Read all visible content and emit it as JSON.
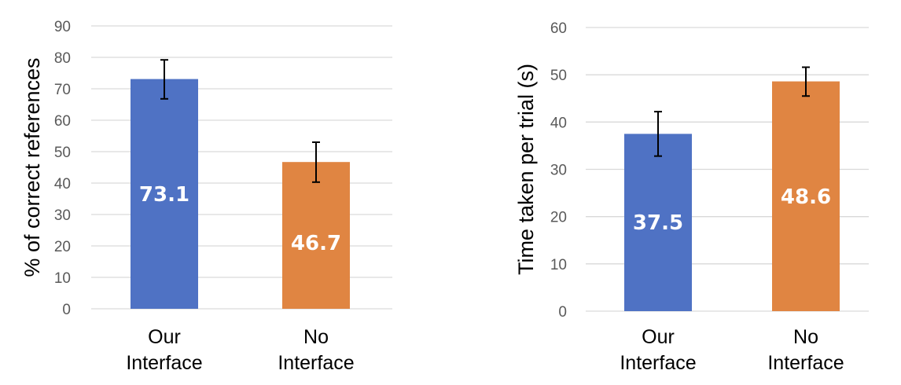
{
  "chart_data": [
    {
      "type": "bar",
      "categories": [
        [
          "Our",
          "Interface"
        ],
        [
          "No",
          "Interface"
        ]
      ],
      "values": [
        73.1,
        46.7
      ],
      "value_labels": [
        "73.1",
        "46.7"
      ],
      "error_low": [
        66.8,
        40.3
      ],
      "error_high": [
        79.2,
        53.0
      ],
      "colors": [
        "#4f72c4",
        "#e08542"
      ],
      "ylabel": "% of correct references",
      "ylim": [
        0,
        90
      ],
      "yticks": [
        0,
        10,
        20,
        30,
        40,
        50,
        60,
        70,
        80,
        90
      ],
      "grid": true,
      "legend": "none"
    },
    {
      "type": "bar",
      "categories": [
        [
          "Our",
          "Interface"
        ],
        [
          "No",
          "Interface"
        ]
      ],
      "values": [
        37.5,
        48.6
      ],
      "value_labels": [
        "37.5",
        "48.6"
      ],
      "error_low": [
        32.8,
        45.5
      ],
      "error_high": [
        42.2,
        51.6
      ],
      "colors": [
        "#4f72c4",
        "#e08542"
      ],
      "ylabel": "Time taken per trial (s)",
      "ylim": [
        0,
        60
      ],
      "yticks": [
        0,
        10,
        20,
        30,
        40,
        50,
        60
      ],
      "grid": true,
      "legend": "none"
    }
  ]
}
